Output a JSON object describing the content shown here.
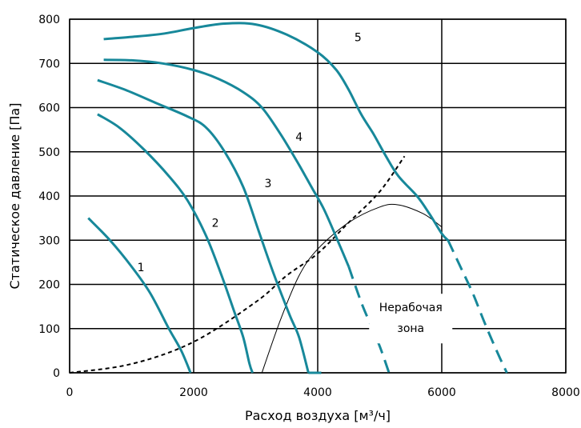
{
  "chart_data": {
    "type": "line",
    "xlabel": "Расход воздуха [м³/ч]",
    "ylabel": "Статическое давление [Па]",
    "xlim": [
      0,
      8000
    ],
    "ylim": [
      0,
      800
    ],
    "x_ticks": [
      0,
      2000,
      4000,
      6000,
      8000
    ],
    "y_ticks": [
      0,
      100,
      200,
      300,
      400,
      500,
      600,
      700,
      800
    ],
    "x_tick_labels": [
      "0",
      "2000",
      "4000",
      "6000",
      "8000"
    ],
    "y_tick_labels": [
      "0",
      "100",
      "200",
      "300",
      "400",
      "500",
      "600",
      "700",
      "800"
    ],
    "grid": true,
    "series_color": "#17889a",
    "series": [
      {
        "name": "1",
        "label_at": [
          1150,
          230
        ],
        "solid": [
          [
            300,
            350
          ],
          [
            650,
            300
          ],
          [
            1000,
            240
          ],
          [
            1300,
            180
          ],
          [
            1600,
            100
          ],
          [
            1800,
            50
          ],
          [
            1950,
            0
          ]
        ]
      },
      {
        "name": "2",
        "label_at": [
          2350,
          330
        ],
        "solid": [
          [
            450,
            585
          ],
          [
            800,
            555
          ],
          [
            1200,
            505
          ],
          [
            1600,
            445
          ],
          [
            1900,
            390
          ],
          [
            2200,
            310
          ],
          [
            2450,
            220
          ],
          [
            2650,
            140
          ],
          [
            2800,
            80
          ],
          [
            2900,
            20
          ],
          [
            2950,
            0
          ]
        ]
      },
      {
        "name": "3",
        "label_at": [
          3200,
          420
        ],
        "solid": [
          [
            450,
            662
          ],
          [
            900,
            640
          ],
          [
            1400,
            610
          ],
          [
            1900,
            580
          ],
          [
            2200,
            555
          ],
          [
            2500,
            500
          ],
          [
            2800,
            420
          ],
          [
            3050,
            320
          ],
          [
            3300,
            220
          ],
          [
            3550,
            130
          ],
          [
            3700,
            80
          ],
          [
            3850,
            0
          ]
        ],
        "dashed": [
          [
            3850,
            0
          ],
          [
            4100,
            0
          ]
        ]
      },
      {
        "name": "4",
        "label_at": [
          3700,
          525
        ],
        "solid": [
          [
            550,
            708
          ],
          [
            1000,
            707
          ],
          [
            1500,
            700
          ],
          [
            2000,
            685
          ],
          [
            2400,
            665
          ],
          [
            2800,
            635
          ],
          [
            3100,
            600
          ],
          [
            3400,
            540
          ],
          [
            3700,
            470
          ],
          [
            3900,
            420
          ],
          [
            4100,
            370
          ],
          [
            4350,
            290
          ],
          [
            4500,
            240
          ]
        ],
        "dashed": [
          [
            4500,
            240
          ],
          [
            4700,
            160
          ],
          [
            4850,
            110
          ],
          [
            5000,
            60
          ],
          [
            5150,
            0
          ]
        ]
      },
      {
        "name": "5",
        "label_at": [
          4650,
          750
        ],
        "solid": [
          [
            550,
            755
          ],
          [
            1000,
            760
          ],
          [
            1500,
            767
          ],
          [
            2000,
            780
          ],
          [
            2500,
            790
          ],
          [
            3000,
            788
          ],
          [
            3500,
            765
          ],
          [
            4000,
            725
          ],
          [
            4300,
            685
          ],
          [
            4500,
            640
          ],
          [
            4700,
            585
          ],
          [
            4900,
            540
          ],
          [
            5100,
            490
          ],
          [
            5300,
            445
          ],
          [
            5600,
            400
          ],
          [
            5800,
            360
          ],
          [
            6000,
            315
          ],
          [
            6100,
            300
          ]
        ],
        "dashed": [
          [
            6100,
            300
          ],
          [
            6300,
            240
          ],
          [
            6500,
            180
          ],
          [
            6700,
            110
          ],
          [
            6900,
            45
          ],
          [
            7050,
            0
          ]
        ]
      }
    ],
    "system_curve": [
      [
        0,
        0
      ],
      [
        1000,
        20
      ],
      [
        2000,
        70
      ],
      [
        3000,
        160
      ],
      [
        3500,
        220
      ],
      [
        4000,
        270
      ],
      [
        4500,
        340
      ],
      [
        5000,
        410
      ],
      [
        5400,
        490
      ]
    ],
    "working_zone_boundary": [
      [
        3100,
        0
      ],
      [
        3400,
        120
      ],
      [
        3700,
        220
      ],
      [
        4000,
        280
      ],
      [
        4500,
        340
      ],
      [
        5000,
        375
      ],
      [
        5300,
        380
      ],
      [
        5700,
        360
      ],
      [
        6000,
        330
      ]
    ],
    "annotations": [
      {
        "line1": "Нерабочая",
        "line2": "зона",
        "at": [
          5500,
          110
        ]
      }
    ]
  }
}
